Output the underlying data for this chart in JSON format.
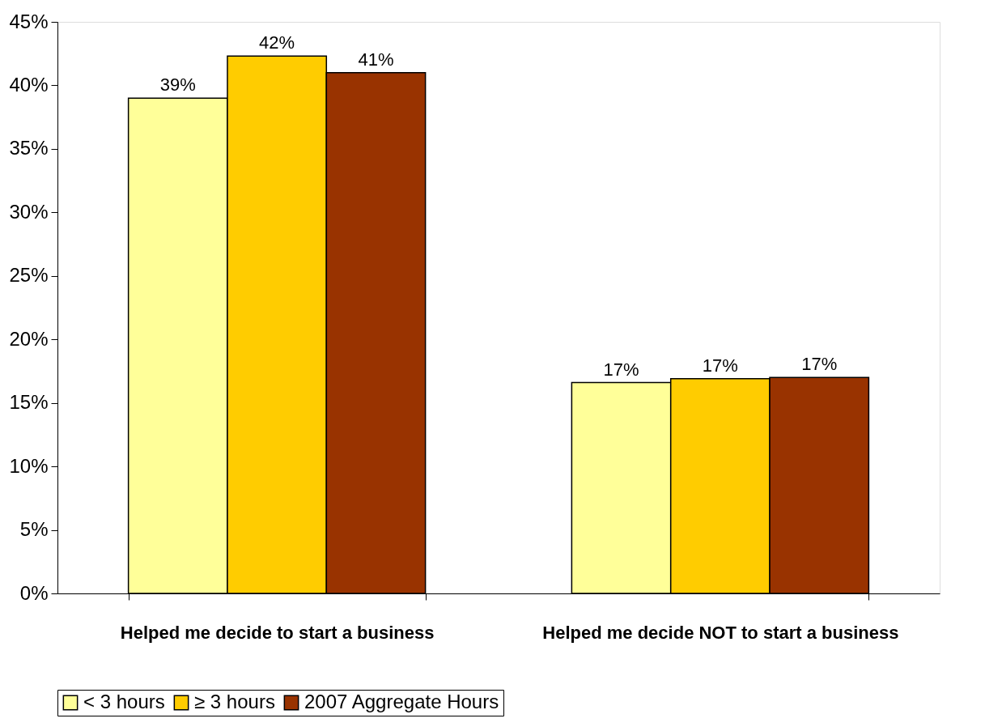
{
  "chart_data": {
    "type": "bar",
    "categories": [
      "Helped me decide to start a business",
      "Helped me decide NOT to start a business"
    ],
    "series": [
      {
        "name": "< 3 hours",
        "color": "#ffff99",
        "values": [
          39,
          16.6
        ],
        "value_labels": [
          "39%",
          "17%"
        ]
      },
      {
        "name": "≥ 3 hours",
        "color": "#ffcc00",
        "values": [
          42.3,
          16.9
        ],
        "value_labels": [
          "42%",
          "17%"
        ]
      },
      {
        "name": "2007 Aggregate Hours",
        "color": "#993300",
        "values": [
          41,
          17.0
        ],
        "value_labels": [
          "41%",
          "17%"
        ]
      }
    ],
    "ylim": [
      0,
      45
    ],
    "yticks": [
      {
        "value": 0,
        "label": "0%"
      },
      {
        "value": 5,
        "label": "5%"
      },
      {
        "value": 10,
        "label": "10%"
      },
      {
        "value": 15,
        "label": "15%"
      },
      {
        "value": 20,
        "label": "20%"
      },
      {
        "value": 25,
        "label": "25%"
      },
      {
        "value": 30,
        "label": "30%"
      },
      {
        "value": 35,
        "label": "35%"
      },
      {
        "value": 40,
        "label": "40%"
      },
      {
        "value": 45,
        "label": "45%"
      }
    ],
    "grid": false,
    "legend": "bottom"
  }
}
